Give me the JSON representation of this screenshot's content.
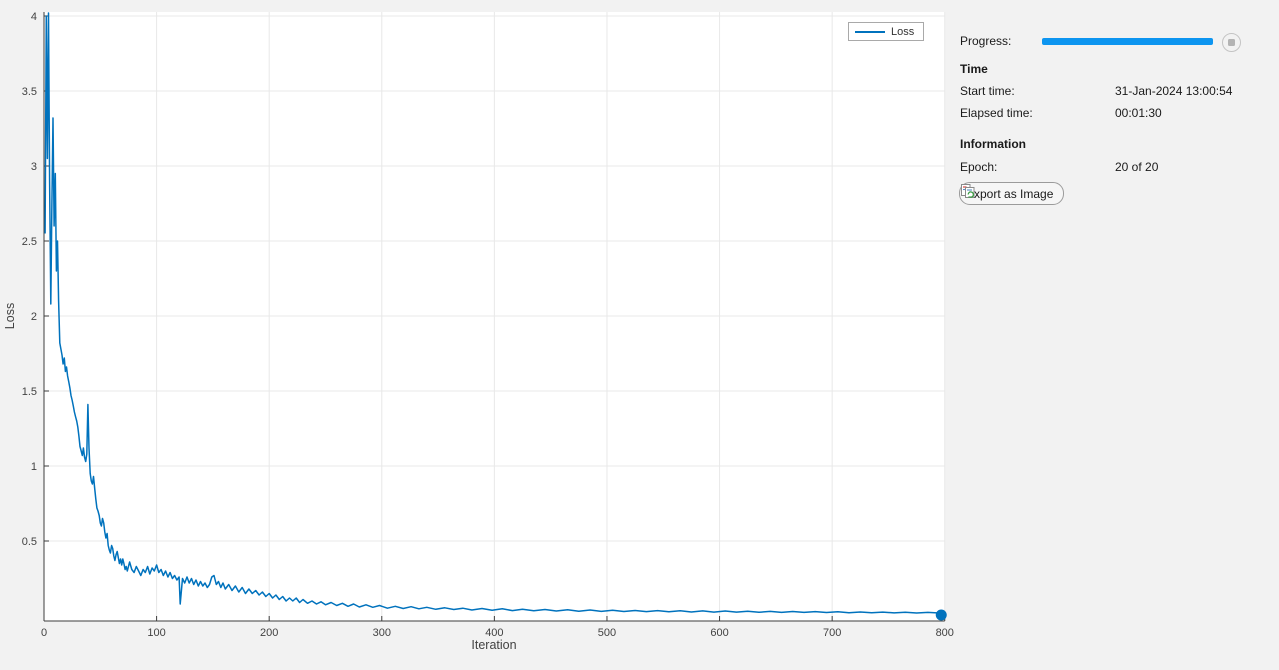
{
  "window": {
    "background": "#f2f2f2"
  },
  "chart_data": {
    "type": "line",
    "title": "",
    "xlabel": "Iteration",
    "ylabel": "Loss",
    "xlim": [
      0,
      800
    ],
    "ylim": [
      0,
      4
    ],
    "x_ticks": [
      0,
      100,
      200,
      300,
      400,
      500,
      600,
      700,
      800
    ],
    "y_ticks": [
      0.5,
      1,
      1.5,
      2,
      2.5,
      3,
      3.5,
      4
    ],
    "grid": true,
    "legend": {
      "position": "top-right",
      "entries": [
        "Loss"
      ]
    },
    "line_color": "#0072BD",
    "end_marker": {
      "x": 800,
      "y": 0.02
    },
    "series": [
      {
        "name": "Loss",
        "points": [
          [
            1,
            2.55
          ],
          [
            2,
            4.0
          ],
          [
            3,
            3.05
          ],
          [
            4,
            4.02
          ],
          [
            5,
            2.9
          ],
          [
            6,
            2.08
          ],
          [
            7,
            2.75
          ],
          [
            8,
            3.32
          ],
          [
            9,
            2.6
          ],
          [
            10,
            2.95
          ],
          [
            11,
            2.3
          ],
          [
            12,
            2.5
          ],
          [
            13,
            2.1
          ],
          [
            14,
            1.82
          ],
          [
            15,
            1.78
          ],
          [
            16,
            1.74
          ],
          [
            17,
            1.68
          ],
          [
            18,
            1.72
          ],
          [
            19,
            1.63
          ],
          [
            20,
            1.66
          ],
          [
            21,
            1.6
          ],
          [
            22,
            1.56
          ],
          [
            23,
            1.52
          ],
          [
            24,
            1.47
          ],
          [
            25,
            1.44
          ],
          [
            26,
            1.4
          ],
          [
            27,
            1.36
          ],
          [
            28,
            1.33
          ],
          [
            29,
            1.3
          ],
          [
            30,
            1.26
          ],
          [
            31,
            1.2
          ],
          [
            32,
            1.13
          ],
          [
            33,
            1.1
          ],
          [
            34,
            1.07
          ],
          [
            35,
            1.12
          ],
          [
            36,
            1.06
          ],
          [
            37,
            1.03
          ],
          [
            38,
            1.08
          ],
          [
            39,
            1.41
          ],
          [
            40,
            1.12
          ],
          [
            41,
            0.95
          ],
          [
            42,
            0.9
          ],
          [
            43,
            0.88
          ],
          [
            44,
            0.93
          ],
          [
            45,
            0.85
          ],
          [
            46,
            0.78
          ],
          [
            47,
            0.72
          ],
          [
            48,
            0.7
          ],
          [
            49,
            0.67
          ],
          [
            50,
            0.62
          ],
          [
            51,
            0.6
          ],
          [
            52,
            0.65
          ],
          [
            53,
            0.62
          ],
          [
            54,
            0.56
          ],
          [
            55,
            0.52
          ],
          [
            56,
            0.55
          ],
          [
            57,
            0.47
          ],
          [
            58,
            0.44
          ],
          [
            59,
            0.42
          ],
          [
            60,
            0.47
          ],
          [
            61,
            0.45
          ],
          [
            62,
            0.4
          ],
          [
            63,
            0.37
          ],
          [
            64,
            0.41
          ],
          [
            65,
            0.43
          ],
          [
            66,
            0.39
          ],
          [
            67,
            0.35
          ],
          [
            68,
            0.38
          ],
          [
            69,
            0.34
          ],
          [
            70,
            0.38
          ],
          [
            71,
            0.35
          ],
          [
            72,
            0.31
          ],
          [
            73,
            0.33
          ],
          [
            74,
            0.3
          ],
          [
            76,
            0.36
          ],
          [
            78,
            0.31
          ],
          [
            80,
            0.29
          ],
          [
            82,
            0.33
          ],
          [
            84,
            0.3
          ],
          [
            86,
            0.27
          ],
          [
            88,
            0.31
          ],
          [
            90,
            0.29
          ],
          [
            92,
            0.33
          ],
          [
            94,
            0.28
          ],
          [
            96,
            0.32
          ],
          [
            98,
            0.3
          ],
          [
            100,
            0.34
          ],
          [
            102,
            0.29
          ],
          [
            104,
            0.31
          ],
          [
            106,
            0.27
          ],
          [
            108,
            0.3
          ],
          [
            110,
            0.26
          ],
          [
            112,
            0.29
          ],
          [
            114,
            0.25
          ],
          [
            116,
            0.27
          ],
          [
            118,
            0.24
          ],
          [
            120,
            0.26
          ],
          [
            121,
            0.08
          ],
          [
            123,
            0.25
          ],
          [
            125,
            0.22
          ],
          [
            127,
            0.26
          ],
          [
            129,
            0.22
          ],
          [
            131,
            0.25
          ],
          [
            133,
            0.21
          ],
          [
            135,
            0.24
          ],
          [
            137,
            0.2
          ],
          [
            139,
            0.23
          ],
          [
            141,
            0.2
          ],
          [
            143,
            0.22
          ],
          [
            145,
            0.19
          ],
          [
            147,
            0.21
          ],
          [
            149,
            0.26
          ],
          [
            151,
            0.27
          ],
          [
            153,
            0.21
          ],
          [
            155,
            0.23
          ],
          [
            157,
            0.19
          ],
          [
            159,
            0.22
          ],
          [
            161,
            0.18
          ],
          [
            164,
            0.21
          ],
          [
            167,
            0.17
          ],
          [
            170,
            0.2
          ],
          [
            173,
            0.16
          ],
          [
            176,
            0.19
          ],
          [
            179,
            0.15
          ],
          [
            182,
            0.18
          ],
          [
            185,
            0.15
          ],
          [
            188,
            0.17
          ],
          [
            191,
            0.14
          ],
          [
            194,
            0.16
          ],
          [
            197,
            0.13
          ],
          [
            200,
            0.15
          ],
          [
            203,
            0.12
          ],
          [
            206,
            0.14
          ],
          [
            209,
            0.11
          ],
          [
            212,
            0.13
          ],
          [
            215,
            0.1
          ],
          [
            218,
            0.12
          ],
          [
            221,
            0.1
          ],
          [
            224,
            0.12
          ],
          [
            227,
            0.09
          ],
          [
            230,
            0.11
          ],
          [
            234,
            0.085
          ],
          [
            238,
            0.1
          ],
          [
            242,
            0.08
          ],
          [
            246,
            0.095
          ],
          [
            250,
            0.075
          ],
          [
            255,
            0.09
          ],
          [
            260,
            0.07
          ],
          [
            265,
            0.085
          ],
          [
            270,
            0.065
          ],
          [
            275,
            0.08
          ],
          [
            280,
            0.06
          ],
          [
            286,
            0.075
          ],
          [
            292,
            0.058
          ],
          [
            298,
            0.07
          ],
          [
            305,
            0.052
          ],
          [
            312,
            0.065
          ],
          [
            319,
            0.05
          ],
          [
            326,
            0.062
          ],
          [
            333,
            0.048
          ],
          [
            340,
            0.058
          ],
          [
            348,
            0.045
          ],
          [
            356,
            0.055
          ],
          [
            364,
            0.043
          ],
          [
            372,
            0.052
          ],
          [
            380,
            0.04
          ],
          [
            389,
            0.05
          ],
          [
            398,
            0.038
          ],
          [
            407,
            0.048
          ],
          [
            416,
            0.036
          ],
          [
            425,
            0.045
          ],
          [
            435,
            0.035
          ],
          [
            445,
            0.043
          ],
          [
            455,
            0.033
          ],
          [
            465,
            0.042
          ],
          [
            475,
            0.032
          ],
          [
            485,
            0.04
          ],
          [
            495,
            0.031
          ],
          [
            505,
            0.038
          ],
          [
            515,
            0.03
          ],
          [
            525,
            0.037
          ],
          [
            535,
            0.029
          ],
          [
            545,
            0.036
          ],
          [
            555,
            0.028
          ],
          [
            565,
            0.035
          ],
          [
            575,
            0.027
          ],
          [
            585,
            0.034
          ],
          [
            595,
            0.026
          ],
          [
            605,
            0.033
          ],
          [
            615,
            0.026
          ],
          [
            625,
            0.032
          ],
          [
            635,
            0.025
          ],
          [
            645,
            0.031
          ],
          [
            655,
            0.024
          ],
          [
            665,
            0.03
          ],
          [
            675,
            0.024
          ],
          [
            685,
            0.029
          ],
          [
            695,
            0.023
          ],
          [
            705,
            0.028
          ],
          [
            715,
            0.022
          ],
          [
            725,
            0.027
          ],
          [
            735,
            0.022
          ],
          [
            745,
            0.026
          ],
          [
            755,
            0.021
          ],
          [
            765,
            0.025
          ],
          [
            775,
            0.02
          ],
          [
            785,
            0.024
          ],
          [
            795,
            0.02
          ],
          [
            800,
            0.02
          ]
        ]
      }
    ]
  },
  "panel": {
    "progress_label": "Progress:",
    "progress_percent": 100,
    "progress_color": "#0D95F0",
    "stop_icon": "stop-square",
    "time_header": "Time",
    "start_time_label": "Start time:",
    "start_time_value": "31-Jan-2024 13:00:54",
    "elapsed_time_label": "Elapsed time:",
    "elapsed_time_value": "00:01:30",
    "information_header": "Information",
    "epoch_label": "Epoch:",
    "epoch_value": "20 of 20",
    "export_button_label": "Export as Image"
  }
}
